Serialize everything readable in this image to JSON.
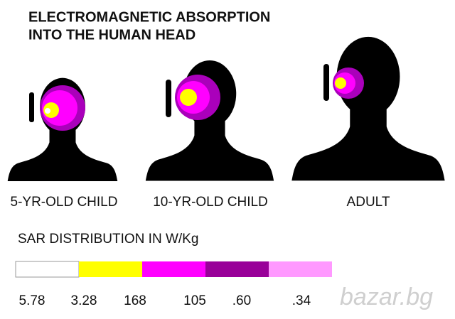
{
  "header": {
    "title_lines": [
      "ELECTROMAGNETIC ABSORPTION",
      "INTO THE HUMAN HEAD"
    ]
  },
  "figures": [
    {
      "label": "5-YR-OLD CHILD"
    },
    {
      "label": "10-YR-OLD CHILD"
    },
    {
      "label": "ADULT"
    }
  ],
  "legend": {
    "title": "SAR DISTRIBUTION IN W/Kg",
    "colors": [
      "#ffffff",
      "#ffff00",
      "#ff00ff",
      "#990099",
      "#ff99ff"
    ],
    "labels": [
      "5.78",
      "3.28",
      "168",
      "105",
      ".60",
      ".34"
    ]
  },
  "watermark": "bazar.bg"
}
